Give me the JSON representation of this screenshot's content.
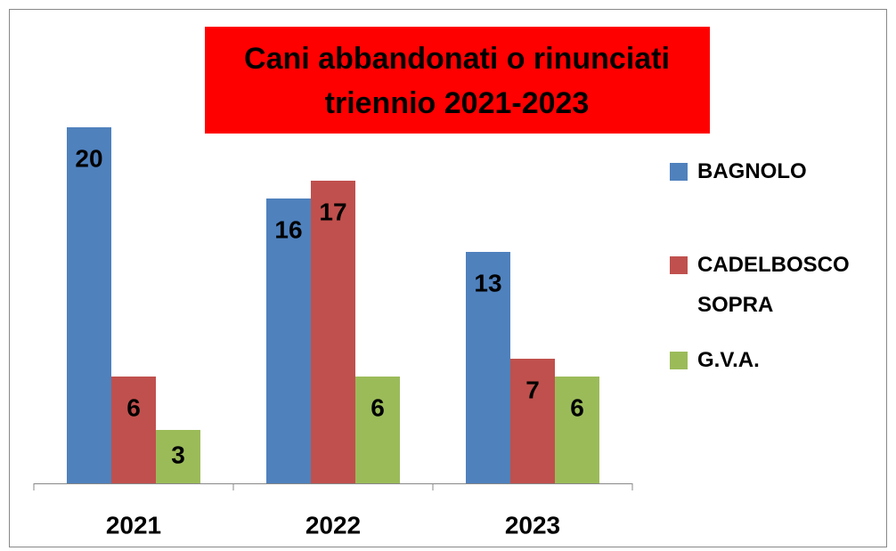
{
  "chart_data": {
    "type": "bar",
    "title": [
      "Cani abbandonati o rinunciati",
      "triennio 2021-2023"
    ],
    "categories": [
      "2021",
      "2022",
      "2023"
    ],
    "series": [
      {
        "name": "BAGNOLO",
        "color": "#4f81bd",
        "values": [
          20,
          16,
          13
        ]
      },
      {
        "name": "CADELBOSCO SOPRA",
        "color": "#c0504d",
        "values": [
          6,
          17,
          7
        ]
      },
      {
        "name": "G.V.A.",
        "color": "#9bbb59",
        "values": [
          3,
          6,
          6
        ]
      }
    ],
    "ylim": [
      0,
      20
    ],
    "grid": false,
    "legend": "right"
  }
}
